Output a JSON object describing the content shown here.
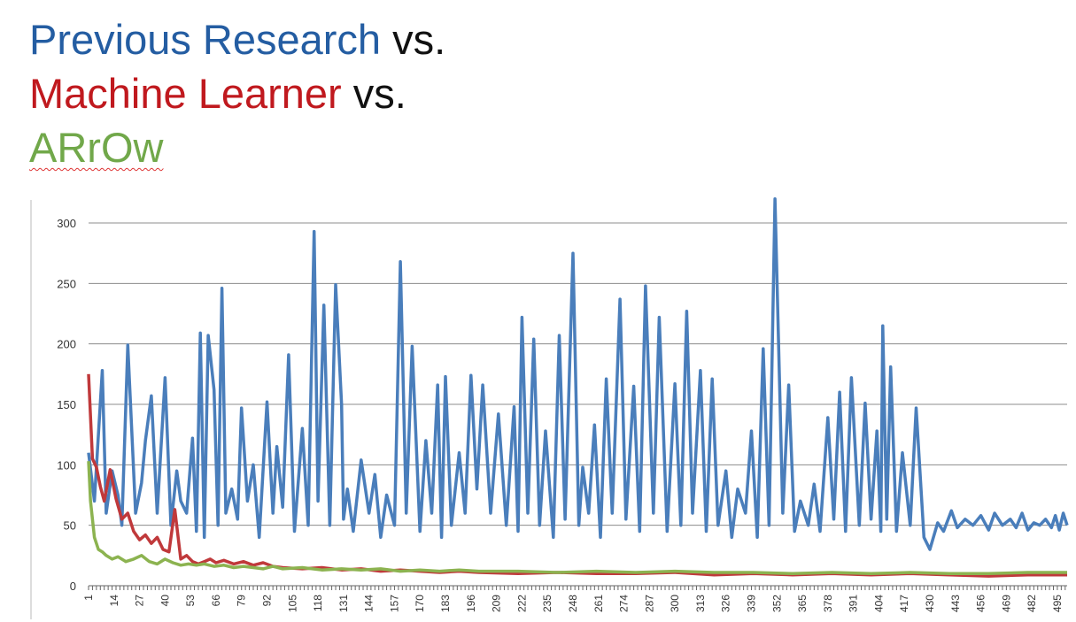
{
  "title": {
    "line1_name": "Previous Research",
    "line1_suffix": " vs.",
    "line2_name": "Machine Learner",
    "line2_suffix": " vs.",
    "line3_name": "ARrOw"
  },
  "colors": {
    "previous_research": "#4a7ebb",
    "machine_learner": "#c0393b",
    "arrow": "#8cb350",
    "grid": "#8c8c8c"
  },
  "chart_data": {
    "type": "line",
    "x_range": [
      1,
      500
    ],
    "ylim": [
      0,
      300
    ],
    "yticks": [
      0,
      50,
      100,
      150,
      200,
      250,
      300
    ],
    "xtick_labels": [
      1,
      14,
      27,
      40,
      53,
      66,
      79,
      92,
      105,
      118,
      131,
      144,
      157,
      170,
      183,
      196,
      209,
      222,
      235,
      248,
      261,
      274,
      287,
      300,
      313,
      326,
      339,
      352,
      365,
      378,
      391,
      404,
      417,
      430,
      443,
      456,
      469,
      482,
      495
    ],
    "grid": true,
    "legend": "none",
    "series": [
      {
        "key": "previous_research",
        "x": [
          1,
          4,
          8,
          10,
          13,
          16,
          18,
          21,
          25,
          28,
          30,
          33,
          36,
          40,
          43,
          46,
          48,
          51,
          54,
          56,
          58,
          60,
          62,
          65,
          67,
          69,
          71,
          74,
          77,
          79,
          82,
          85,
          88,
          92,
          95,
          97,
          100,
          103,
          106,
          110,
          113,
          116,
          118,
          121,
          124,
          127,
          130,
          131,
          133,
          136,
          140,
          144,
          147,
          150,
          153,
          157,
          160,
          163,
          166,
          170,
          173,
          176,
          179,
          181,
          183,
          186,
          190,
          193,
          196,
          199,
          202,
          206,
          210,
          214,
          218,
          220,
          222,
          225,
          228,
          231,
          234,
          238,
          241,
          244,
          248,
          251,
          253,
          256,
          259,
          262,
          265,
          268,
          272,
          275,
          279,
          282,
          285,
          289,
          292,
          296,
          300,
          303,
          306,
          309,
          313,
          316,
          319,
          322,
          326,
          329,
          332,
          336,
          339,
          342,
          345,
          348,
          351,
          355,
          358,
          361,
          364,
          368,
          371,
          374,
          378,
          381,
          384,
          387,
          390,
          394,
          397,
          400,
          403,
          405,
          406,
          408,
          410,
          413,
          416,
          420,
          423,
          427,
          430,
          434,
          437,
          441,
          444,
          448,
          452,
          456,
          460,
          463,
          467,
          471,
          474,
          477,
          480,
          483,
          486,
          489,
          492,
          494,
          496,
          498,
          500
        ],
        "values": [
          110,
          70,
          178,
          60,
          95,
          75,
          50,
          199,
          60,
          85,
          120,
          157,
          60,
          172,
          50,
          95,
          70,
          60,
          122,
          45,
          209,
          40,
          207,
          162,
          50,
          246,
          60,
          80,
          55,
          147,
          70,
          100,
          40,
          152,
          60,
          115,
          65,
          191,
          45,
          130,
          50,
          293,
          70,
          232,
          50,
          249,
          150,
          55,
          80,
          45,
          104,
          60,
          92,
          40,
          75,
          50,
          268,
          60,
          198,
          45,
          120,
          60,
          166,
          40,
          173,
          50,
          110,
          60,
          174,
          80,
          166,
          60,
          142,
          50,
          148,
          45,
          222,
          60,
          204,
          50,
          128,
          40,
          207,
          55,
          275,
          50,
          98,
          60,
          133,
          40,
          171,
          60,
          237,
          55,
          165,
          45,
          248,
          60,
          222,
          45,
          167,
          50,
          227,
          60,
          178,
          45,
          171,
          50,
          95,
          40,
          80,
          60,
          128,
          40,
          196,
          50,
          320,
          60,
          166,
          45,
          70,
          50,
          84,
          45,
          139,
          55,
          160,
          45,
          172,
          50,
          151,
          55,
          128,
          45,
          215,
          55,
          181,
          45,
          110,
          50,
          147,
          40,
          30,
          52,
          45,
          62,
          48,
          55,
          50,
          58,
          46,
          60,
          50,
          55,
          48,
          60,
          46,
          52,
          50,
          55,
          48,
          58,
          46,
          60,
          50
        ]
      },
      {
        "key": "machine_learner",
        "x": [
          1,
          3,
          5,
          7,
          9,
          12,
          15,
          18,
          21,
          24,
          27,
          30,
          33,
          36,
          39,
          42,
          45,
          48,
          51,
          54,
          57,
          60,
          63,
          66,
          70,
          75,
          80,
          85,
          90,
          95,
          100,
          110,
          120,
          130,
          140,
          150,
          160,
          170,
          180,
          190,
          200,
          220,
          240,
          260,
          280,
          300,
          320,
          340,
          360,
          380,
          400,
          420,
          440,
          460,
          480,
          500
        ],
        "values": [
          175,
          105,
          98,
          82,
          70,
          96,
          72,
          55,
          60,
          45,
          38,
          42,
          35,
          40,
          30,
          28,
          63,
          22,
          25,
          20,
          18,
          20,
          22,
          19,
          21,
          18,
          20,
          17,
          19,
          16,
          15,
          14,
          15,
          13,
          14,
          12,
          13,
          12,
          11,
          12,
          11,
          10,
          11,
          10,
          10,
          11,
          9,
          10,
          9,
          10,
          9,
          10,
          9,
          8,
          9,
          9
        ]
      },
      {
        "key": "arrow",
        "x": [
          1,
          2,
          4,
          6,
          8,
          10,
          13,
          16,
          20,
          24,
          28,
          32,
          36,
          40,
          44,
          48,
          52,
          56,
          60,
          65,
          70,
          75,
          80,
          85,
          90,
          95,
          100,
          110,
          120,
          130,
          140,
          150,
          160,
          170,
          180,
          190,
          200,
          220,
          240,
          260,
          280,
          300,
          320,
          340,
          360,
          380,
          400,
          420,
          440,
          460,
          480,
          500
        ],
        "values": [
          103,
          70,
          40,
          30,
          28,
          25,
          22,
          24,
          20,
          22,
          25,
          20,
          18,
          22,
          19,
          17,
          18,
          17,
          18,
          16,
          17,
          15,
          16,
          15,
          14,
          16,
          14,
          15,
          13,
          14,
          13,
          14,
          12,
          13,
          12,
          13,
          12,
          12,
          11,
          12,
          11,
          12,
          11,
          11,
          10,
          11,
          10,
          11,
          10,
          10,
          11,
          11
        ]
      }
    ]
  }
}
